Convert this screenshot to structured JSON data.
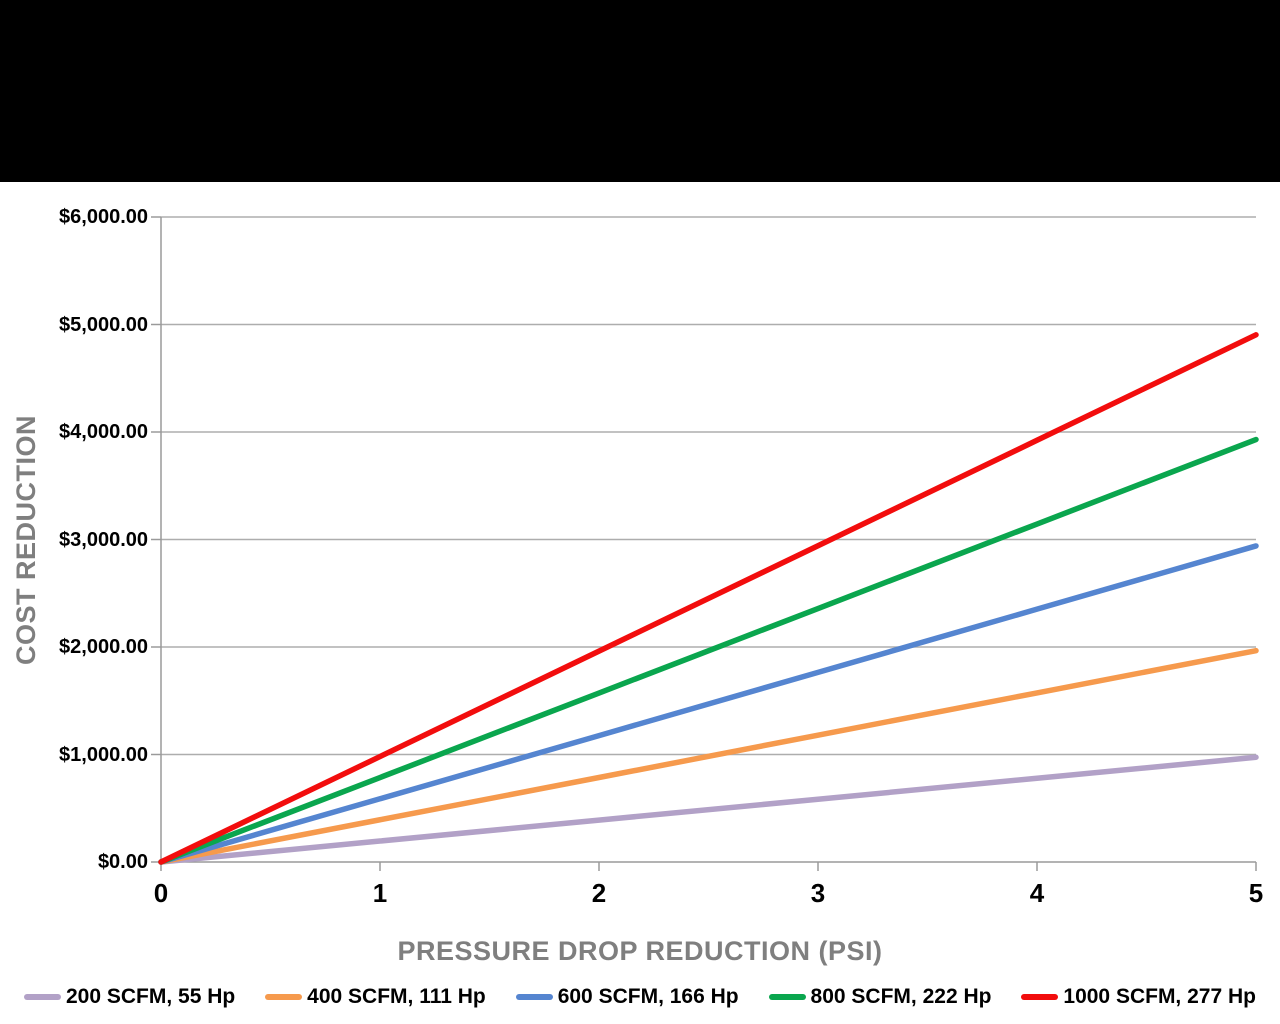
{
  "window": {
    "background_color": "#000000",
    "canvas_color": "#ffffff"
  },
  "chart_data": {
    "type": "line",
    "title": "",
    "xlabel": "PRESSURE DROP REDUCTION (PSI)",
    "ylabel": "COST REDUCTION",
    "x": [
      0,
      1,
      2,
      3,
      4,
      5
    ],
    "xlim": [
      0,
      5
    ],
    "ylim": [
      0,
      6000
    ],
    "x_tick_labels": [
      "0",
      "1",
      "2",
      "3",
      "4",
      "5"
    ],
    "y_tick_labels": [
      "$0.00",
      "$1,000.00",
      "$2,000.00",
      "$3,000.00",
      "$4,000.00",
      "$5,000.00",
      "$6,000.00"
    ],
    "grid": "horizontal",
    "legend_position": "bottom",
    "axis_color": "#9A9A9A",
    "gridline_color": "#ADADAD",
    "axis_title_color": "#7F7F7F",
    "tick_label_color": "#000000",
    "line_width": 5.5,
    "series": [
      {
        "name": "200 SCFM, 55 Hp",
        "color": "#B2A1C7",
        "values": [
          0,
          195,
          390,
          584,
          779,
          974
        ]
      },
      {
        "name": "400 SCFM, 111 Hp",
        "color": "#F69A4D",
        "values": [
          0,
          393,
          786,
          1180,
          1573,
          1966
        ]
      },
      {
        "name": "600 SCFM, 166 Hp",
        "color": "#5585D0",
        "values": [
          0,
          588,
          1176,
          1764,
          2352,
          2940
        ]
      },
      {
        "name": "800 SCFM, 222 Hp",
        "color": "#0AA64E",
        "values": [
          0,
          786,
          1572,
          2358,
          3144,
          3930
        ]
      },
      {
        "name": "1000 SCFM, 277 Hp",
        "color": "#F20D0D",
        "values": [
          0,
          981,
          1962,
          2942,
          3923,
          4904
        ]
      }
    ]
  }
}
